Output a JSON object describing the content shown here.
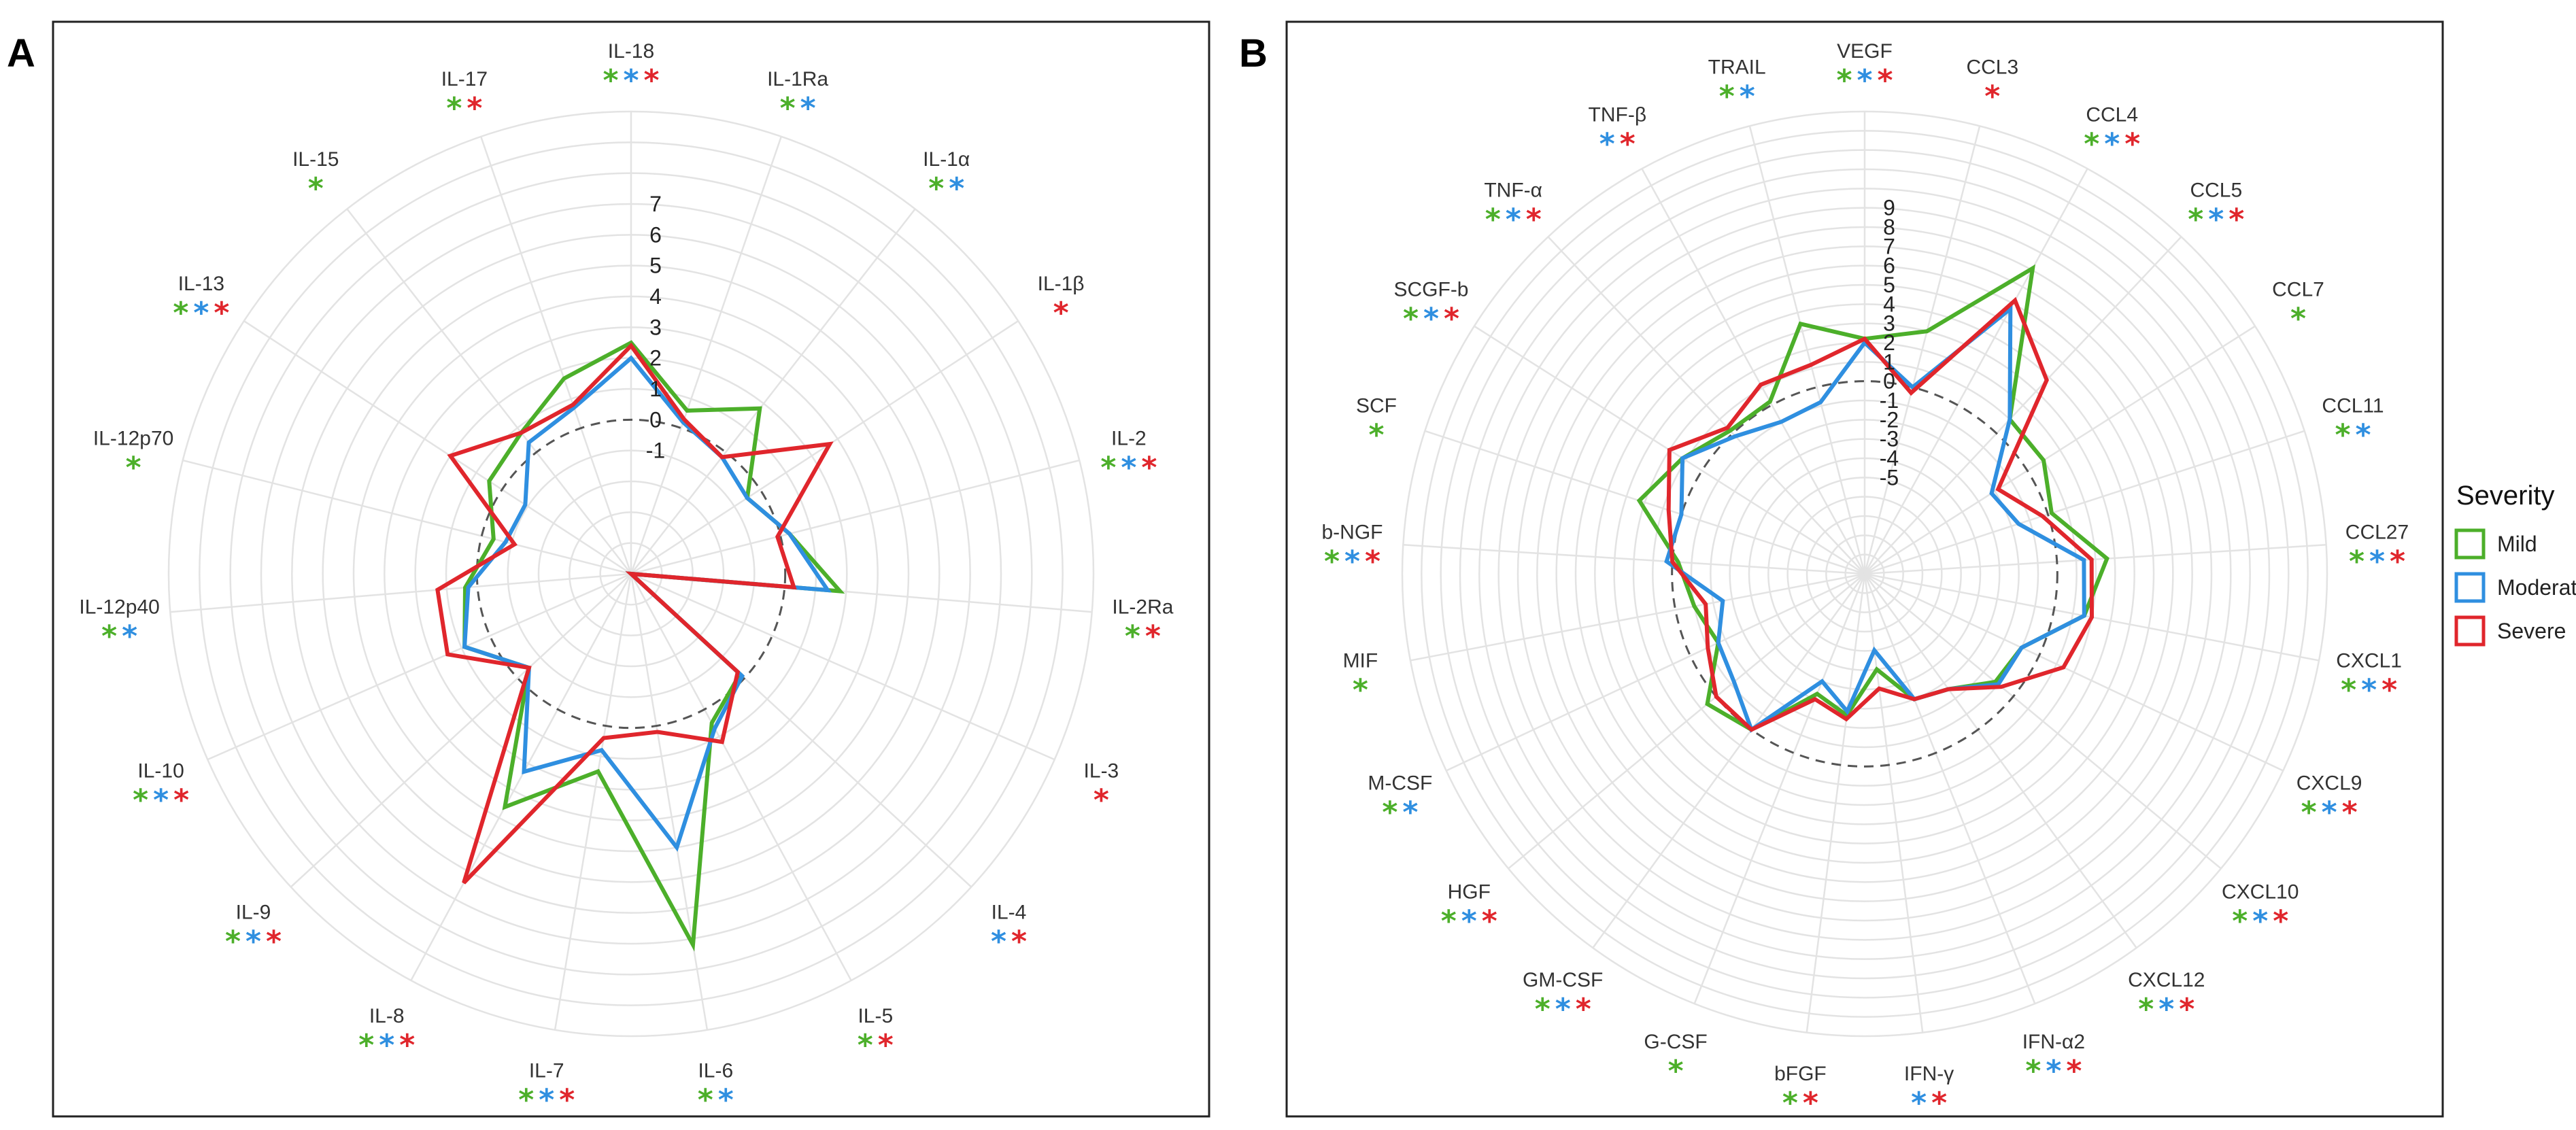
{
  "legend": {
    "title": "Severity",
    "items": [
      {
        "name": "Mild",
        "color": "#4caf2a"
      },
      {
        "name": "Moderate",
        "color": "#2f8fe0"
      },
      {
        "name": "Severe",
        "color": "#e0262c"
      }
    ]
  },
  "chart_data": [
    {
      "type": "radar",
      "panel_label": "A",
      "rmin": -5,
      "rmax": 10,
      "tick_values": [
        -1,
        0,
        1,
        2,
        3,
        4,
        5,
        6,
        7
      ],
      "tick_labels": [
        "-1",
        "0",
        "1",
        "2",
        "3",
        "4",
        "5",
        "6",
        "7"
      ],
      "reference_ring": 0,
      "categories": [
        "IL-18",
        "IL-1Ra",
        "IL-1α",
        "IL-1β",
        "IL-2",
        "IL-2Ra",
        "IL-3",
        "IL-4",
        "IL-5",
        "IL-6",
        "IL-7",
        "IL-8",
        "IL-9",
        "IL-10",
        "IL-12p40",
        "IL-12p70",
        "IL-13",
        "IL-15",
        "IL-17"
      ],
      "significance": [
        [
          "Mild",
          "Moderate",
          "Severe"
        ],
        [
          "Mild",
          "Moderate"
        ],
        [
          "Mild",
          "Moderate"
        ],
        [
          "Severe"
        ],
        [
          "Mild",
          "Moderate",
          "Severe"
        ],
        [
          "Mild",
          "Severe"
        ],
        [
          "Severe"
        ],
        [
          "Moderate",
          "Severe"
        ],
        [
          "Mild",
          "Severe"
        ],
        [
          "Mild",
          "Moderate"
        ],
        [
          "Mild",
          "Moderate",
          "Severe"
        ],
        [
          "Mild",
          "Moderate",
          "Severe"
        ],
        [
          "Mild",
          "Moderate",
          "Severe"
        ],
        [
          "Mild",
          "Moderate",
          "Severe"
        ],
        [
          "Mild",
          "Moderate"
        ],
        [
          "Mild"
        ],
        [
          "Mild",
          "Moderate",
          "Severe"
        ],
        [
          "Mild"
        ],
        [
          "Mild",
          "Severe"
        ]
      ],
      "series": [
        {
          "name": "Mild",
          "values": [
            2.5,
            0.6,
            1.8,
            -0.5,
            0.3,
            1.8,
            -5,
            -0.2,
            0.5,
            7.2,
            1.5,
            3.6,
            -0.5,
            0.9,
            0.4,
            -0.4,
            0.5,
            0.8,
            1.7
          ]
        },
        {
          "name": "Moderate",
          "values": [
            2.0,
            0.2,
            -0.2,
            -0.5,
            0.3,
            1.4,
            -5,
            -0.1,
            0.7,
            4.0,
            0.8,
            2.3,
            -0.5,
            0.9,
            0.3,
            -0.8,
            -0.9,
            0.4,
            0.7
          ]
        },
        {
          "name": "Severe",
          "values": [
            2.4,
            0.3,
            -0.2,
            2.7,
            -0.1,
            0.3,
            -5,
            -0.3,
            1.2,
            0.2,
            0.4,
            6.4,
            -0.5,
            1.5,
            1.3,
            -1.1,
            2.0,
            0.8,
            0.8
          ]
        }
      ]
    },
    {
      "type": "radar",
      "panel_label": "B",
      "rmin": -10,
      "rmax": 14,
      "tick_values": [
        -5,
        -4,
        -3,
        -2,
        -1,
        0,
        1,
        2,
        3,
        4,
        5,
        6,
        7,
        8,
        9
      ],
      "tick_labels": [
        "-5",
        "-4",
        "-3",
        "-2",
        "-1",
        "0",
        "1",
        "2",
        "3",
        "4",
        "5",
        "6",
        "7",
        "8",
        "9"
      ],
      "reference_ring": 0,
      "categories": [
        "VEGF",
        "CCL3",
        "CCL4",
        "CCL5",
        "CCL7",
        "CCL11",
        "CCL27",
        "CXCL1",
        "CXCL9",
        "CXCL10",
        "CXCL12",
        "IFN-α2",
        "IFN-γ",
        "bFGF",
        "G-CSF",
        "GM-CSF",
        "HGF",
        "M-CSF",
        "MIF",
        "b-NGF",
        "SCF",
        "SCGF-b",
        "TNF-α",
        "TNF-β",
        "TRAIL"
      ],
      "significance": [
        [
          "Mild",
          "Moderate",
          "Severe"
        ],
        [
          "Severe"
        ],
        [
          "Mild",
          "Moderate",
          "Severe"
        ],
        [
          "Mild",
          "Moderate",
          "Severe"
        ],
        [
          "Mild"
        ],
        [
          "Mild",
          "Moderate"
        ],
        [
          "Mild",
          "Moderate",
          "Severe"
        ],
        [
          "Mild",
          "Moderate",
          "Severe"
        ],
        [
          "Mild",
          "Moderate",
          "Severe"
        ],
        [
          "Mild",
          "Moderate",
          "Severe"
        ],
        [
          "Mild",
          "Moderate",
          "Severe"
        ],
        [
          "Mild",
          "Moderate",
          "Severe"
        ],
        [
          "Moderate",
          "Severe"
        ],
        [
          "Mild",
          "Severe"
        ],
        [
          "Mild"
        ],
        [
          "Mild",
          "Moderate",
          "Severe"
        ],
        [
          "Mild",
          "Moderate",
          "Severe"
        ],
        [
          "Mild",
          "Moderate"
        ],
        [
          "Mild"
        ],
        [
          "Mild",
          "Moderate",
          "Severe"
        ],
        [
          "Mild"
        ],
        [
          "Mild",
          "Moderate",
          "Severe"
        ],
        [
          "Mild",
          "Moderate",
          "Severe"
        ],
        [
          "Moderate",
          "Severe"
        ],
        [
          "Mild",
          "Moderate"
        ]
      ],
      "series": [
        {
          "name": "Mild",
          "values": [
            2.2,
            3.0,
            8.1,
            1.0,
            1.0,
            0.2,
            2.6,
            1.6,
            -1.0,
            -1.2,
            -2.6,
            -3.0,
            -5.0,
            -2.6,
            -3.3,
            0.0,
            0.6,
            -1.6,
            -1.0,
            -0.3,
            2.3,
            1.2,
            0.2,
            0.2,
            3.4
          ]
        },
        {
          "name": "Moderate",
          "values": [
            2.0,
            0.0,
            5.7,
            1.0,
            -2.2,
            -1.6,
            1.4,
            1.6,
            -1.0,
            -1.0,
            -2.6,
            -3.0,
            -6.0,
            -2.8,
            -4.0,
            0.0,
            -1.2,
            -1.6,
            -2.5,
            0.3,
            0.0,
            1.2,
            -0.2,
            -1.0,
            -0.8
          ]
        },
        {
          "name": "Severe",
          "values": [
            2.2,
            -0.3,
            6.2,
            3.8,
            -1.8,
            -0.3,
            1.8,
            2.0,
            1.4,
            -0.8,
            -2.6,
            -3.0,
            -4.0,
            -2.4,
            -3.0,
            0.0,
            0.0,
            -1.0,
            -1.6,
            0.0,
            0.7,
            2.0,
            0.4,
            1.2,
            1.2
          ]
        }
      ]
    }
  ]
}
